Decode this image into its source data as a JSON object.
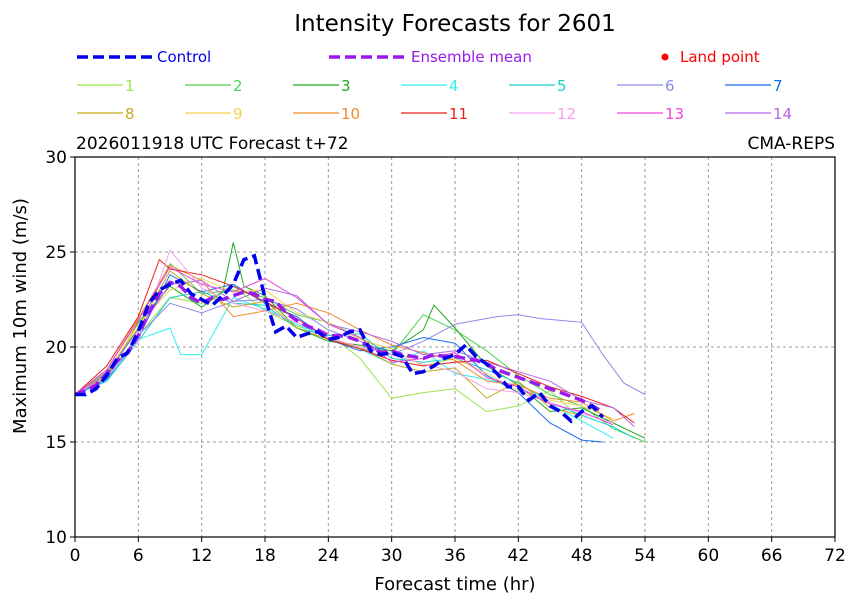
{
  "chart_data": {
    "type": "line",
    "title": "Intensity Forecasts for 2601",
    "header_left": "2026011918 UTC Forecast t+72",
    "header_right": "CMA-REPS",
    "xlabel": "Forecast time (hr)",
    "ylabel": "Maximum 10m wind (m/s)",
    "xlim": [
      0,
      72
    ],
    "ylim": [
      10,
      30
    ],
    "x_ticks": [
      0,
      6,
      12,
      18,
      24,
      30,
      36,
      42,
      48,
      54,
      60,
      66,
      72
    ],
    "y_ticks": [
      10,
      15,
      20,
      25,
      30
    ],
    "grid": true,
    "legend_control": "Control",
    "legend_mean": "Ensemble mean",
    "legend_land": "Land point",
    "colors": {
      "control": "#0000ee",
      "mean": "#9a1aee",
      "land": "#ff0000"
    },
    "control": {
      "x": [
        0,
        1,
        2,
        3,
        4,
        5,
        6,
        7,
        8,
        9,
        10,
        11,
        12,
        13,
        14,
        15,
        16,
        17,
        18,
        19,
        20,
        21,
        22,
        23,
        24,
        25,
        26,
        27,
        28,
        29,
        30,
        31,
        32,
        33,
        34,
        35,
        36,
        37,
        38,
        39,
        40,
        41,
        42,
        43,
        44,
        45,
        46,
        47,
        48,
        49,
        50
      ],
      "y": [
        17.5,
        17.5,
        17.8,
        18.5,
        19.4,
        19.7,
        20.8,
        22.3,
        23.0,
        23.3,
        23.5,
        22.8,
        22.5,
        22.2,
        22.7,
        23.3,
        24.6,
        24.8,
        22.6,
        20.8,
        21.1,
        20.5,
        20.7,
        20.8,
        20.4,
        20.5,
        20.8,
        20.9,
        19.8,
        19.6,
        19.7,
        19.5,
        18.6,
        18.7,
        19.0,
        19.4,
        19.6,
        20.1,
        19.5,
        19.1,
        18.6,
        17.9,
        17.9,
        17.2,
        17.6,
        16.9,
        16.6,
        16.1,
        16.6,
        16.9,
        16.3
      ]
    },
    "mean": {
      "x": [
        0,
        1,
        2,
        3,
        4,
        5,
        6,
        7,
        8,
        9,
        10,
        11,
        12,
        13,
        14,
        15,
        16,
        17,
        18,
        19,
        20,
        21,
        22,
        23,
        24,
        25,
        26,
        27,
        28,
        29,
        30,
        31,
        32,
        33,
        34,
        35,
        36,
        37,
        38,
        39,
        40,
        41,
        42,
        43,
        44,
        45,
        46,
        47,
        48,
        49,
        50
      ],
      "y": [
        17.5,
        17.7,
        18.0,
        18.6,
        19.3,
        19.7,
        20.6,
        21.8,
        22.8,
        23.4,
        23.2,
        22.6,
        22.3,
        22.6,
        22.5,
        22.7,
        22.9,
        22.8,
        22.5,
        22.4,
        21.8,
        21.4,
        21.1,
        20.9,
        20.6,
        20.6,
        20.5,
        20.3,
        20.0,
        19.7,
        19.8,
        19.6,
        19.5,
        19.4,
        19.6,
        19.5,
        19.5,
        19.4,
        19.3,
        19.1,
        18.8,
        18.6,
        18.4,
        18.2,
        18.0,
        17.8,
        17.6,
        17.4,
        17.2,
        16.9,
        16.6
      ]
    },
    "series": [
      {
        "name": "1",
        "color": "#99e64d",
        "x": [
          0,
          3,
          6,
          9,
          12,
          15,
          18,
          21,
          24,
          27,
          30,
          33,
          36,
          39,
          42,
          45,
          48
        ],
        "y": [
          17.5,
          18.5,
          20.6,
          22.6,
          22.3,
          23.2,
          21.9,
          21.1,
          20.7,
          19.4,
          17.3,
          17.6,
          17.8,
          16.6,
          16.9,
          17.7,
          16.2
        ]
      },
      {
        "name": "2",
        "color": "#4dd14d",
        "x": [
          0,
          3,
          6,
          9,
          12,
          15,
          18,
          21,
          24,
          27,
          30,
          33,
          36,
          39,
          42,
          45,
          48,
          51,
          54
        ],
        "y": [
          17.5,
          18.7,
          21.0,
          24.4,
          22.8,
          23.0,
          22.6,
          21.7,
          21.3,
          20.5,
          19.6,
          21.7,
          20.9,
          19.8,
          18.5,
          17.5,
          16.9,
          15.7,
          15.0
        ]
      },
      {
        "name": "3",
        "color": "#1faa1f",
        "x": [
          0,
          3,
          6,
          9,
          12,
          14,
          15,
          16,
          18,
          21,
          24,
          27,
          30,
          33,
          34,
          36,
          39,
          42,
          45,
          48,
          51,
          54
        ],
        "y": [
          17.5,
          18.4,
          21.3,
          23.2,
          22.1,
          22.9,
          25.5,
          23.2,
          22.7,
          21.0,
          20.3,
          20.1,
          19.8,
          20.9,
          22.2,
          21.0,
          19.0,
          18.0,
          16.6,
          16.8,
          16.0,
          15.2
        ]
      },
      {
        "name": "4",
        "color": "#33eeee",
        "x": [
          0,
          3,
          6,
          9,
          10,
          12,
          15,
          18,
          21,
          24,
          27,
          30,
          33,
          36,
          39,
          42,
          45,
          48,
          51
        ],
        "y": [
          17.5,
          18.2,
          20.4,
          21.0,
          19.6,
          19.6,
          22.6,
          22.0,
          21.2,
          20.5,
          19.9,
          19.1,
          19.8,
          18.6,
          18.3,
          17.9,
          17.0,
          16.1,
          15.2
        ]
      },
      {
        "name": "5",
        "color": "#1ad0c6",
        "x": [
          0,
          3,
          6,
          9,
          12,
          15,
          18,
          21,
          24,
          27,
          30,
          33,
          36,
          39,
          42,
          45,
          48,
          51,
          53
        ],
        "y": [
          17.5,
          18.2,
          20.3,
          22.6,
          22.9,
          22.3,
          22.2,
          21.0,
          20.6,
          20.7,
          19.4,
          19.2,
          19.4,
          18.8,
          18.1,
          17.1,
          16.4,
          15.8,
          15.2
        ]
      },
      {
        "name": "6",
        "color": "#8a8aee",
        "x": [
          0,
          3,
          6,
          9,
          12,
          15,
          18,
          21,
          24,
          27,
          30,
          33,
          36,
          38,
          40,
          42,
          44,
          46,
          48,
          50,
          52,
          54
        ],
        "y": [
          17.5,
          18.4,
          20.6,
          22.3,
          21.8,
          22.4,
          22.5,
          22.0,
          20.9,
          20.3,
          19.6,
          20.3,
          21.2,
          21.4,
          21.6,
          21.7,
          21.5,
          21.4,
          21.3,
          19.6,
          18.1,
          17.5
        ]
      },
      {
        "name": "7",
        "color": "#1a6ef0",
        "x": [
          0,
          3,
          6,
          9,
          12,
          15,
          18,
          21,
          24,
          27,
          30,
          33,
          36,
          39,
          42,
          45,
          48,
          50
        ],
        "y": [
          17.5,
          18.3,
          20.5,
          23.8,
          22.9,
          23.3,
          22.3,
          21.6,
          20.4,
          19.8,
          20.0,
          20.5,
          20.2,
          18.5,
          17.6,
          16.0,
          15.1,
          15.0
        ]
      },
      {
        "name": "8",
        "color": "#c8aa1a",
        "x": [
          0,
          3,
          6,
          9,
          12,
          15,
          18,
          21,
          24,
          27,
          30,
          33,
          36,
          39,
          42,
          45,
          48
        ],
        "y": [
          17.5,
          18.5,
          21.0,
          24.0,
          22.8,
          22.1,
          22.4,
          21.0,
          20.4,
          20.0,
          19.1,
          18.7,
          18.9,
          17.3,
          18.2,
          16.8,
          16.4
        ]
      },
      {
        "name": "9",
        "color": "#f0d24d",
        "x": [
          0,
          3,
          6,
          9,
          12,
          15,
          18,
          21,
          24,
          27,
          30,
          33,
          36,
          39,
          42,
          45,
          48,
          51
        ],
        "y": [
          17.5,
          18.6,
          21.2,
          23.0,
          23.6,
          22.9,
          23.0,
          21.8,
          21.3,
          20.4,
          19.9,
          19.0,
          19.4,
          18.6,
          17.7,
          17.2,
          16.9,
          16.2
        ]
      },
      {
        "name": "10",
        "color": "#f08a2a",
        "x": [
          0,
          3,
          6,
          9,
          12,
          15,
          18,
          21,
          24,
          27,
          30,
          33,
          36,
          39,
          42,
          45,
          48,
          51,
          53
        ],
        "y": [
          17.5,
          18.8,
          21.5,
          24.3,
          23.5,
          21.6,
          21.9,
          22.3,
          21.8,
          20.9,
          20.1,
          19.7,
          19.3,
          18.2,
          18.0,
          17.3,
          17.1,
          16.1,
          16.5
        ]
      },
      {
        "name": "11",
        "color": "#e8231a",
        "x": [
          0,
          3,
          6,
          8,
          9,
          12,
          15,
          18,
          21,
          24,
          27,
          30,
          33,
          36,
          39,
          42,
          45,
          48,
          51,
          53
        ],
        "y": [
          17.5,
          19.0,
          21.6,
          24.6,
          24.1,
          23.8,
          23.2,
          22.4,
          21.5,
          20.4,
          19.9,
          19.3,
          19.0,
          19.2,
          19.3,
          18.6,
          17.9,
          17.4,
          16.8,
          16.0
        ]
      },
      {
        "name": "12",
        "color": "#f5a0f0",
        "x": [
          0,
          3,
          6,
          9,
          12,
          15,
          18,
          21,
          24,
          27,
          30,
          33,
          36,
          39,
          42,
          45,
          48,
          51
        ],
        "y": [
          17.5,
          18.4,
          20.3,
          25.1,
          23.1,
          22.3,
          21.9,
          21.3,
          20.5,
          20.0,
          19.6,
          19.1,
          18.7,
          17.8,
          17.6,
          17.1,
          16.5,
          16.0
        ]
      },
      {
        "name": "13",
        "color": "#ee44dd",
        "x": [
          0,
          3,
          6,
          9,
          12,
          15,
          18,
          21,
          24,
          27,
          30,
          33,
          36,
          39,
          42,
          45,
          48,
          51
        ],
        "y": [
          17.5,
          18.8,
          21.4,
          24.2,
          23.3,
          22.9,
          23.6,
          22.6,
          21.2,
          20.5,
          19.2,
          19.4,
          19.7,
          18.4,
          17.9,
          17.0,
          16.6,
          15.9
        ]
      },
      {
        "name": "14",
        "color": "#b366e6",
        "x": [
          0,
          3,
          6,
          9,
          12,
          15,
          18,
          21,
          24,
          27,
          30,
          33,
          36,
          39,
          42,
          45,
          48,
          51,
          53
        ],
        "y": [
          17.5,
          18.6,
          20.9,
          23.3,
          23.5,
          22.4,
          23.1,
          22.7,
          21.2,
          20.8,
          20.3,
          19.6,
          19.8,
          19.2,
          18.7,
          18.2,
          17.2,
          16.8,
          15.8
        ]
      }
    ]
  }
}
